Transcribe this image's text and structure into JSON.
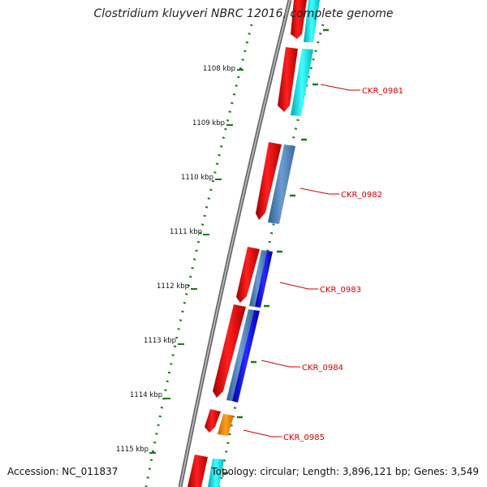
{
  "title": "Clostridium kluyveri NBRC 12016, complete genome",
  "accession_text": "Accession: NC_011837",
  "topology_text": "Topology: circular; Length: 3,896,121 bp; Genes: 3,549",
  "kbp_labels": [
    "1108 kbp",
    "1109 kbp",
    "1110 kbp",
    "1111 kbp",
    "1112 kbp",
    "1113 kbp",
    "1114 kbp",
    "1115 kbp"
  ],
  "gene_labels": [
    "CKR_0981",
    "CKR_0982",
    "CKR_0983",
    "CKR_0984",
    "CKR_0985"
  ],
  "colors": {
    "backbone": "#8a8a8a",
    "tick": "#1a7a1a",
    "cds_forward": "#ff0000",
    "track_cyan": "#00e5ee",
    "track_steelblue": "#4a7fb5",
    "track_blue": "#0000ee",
    "track_orange": "#ff8c00",
    "label_red": "#d40000"
  }
}
